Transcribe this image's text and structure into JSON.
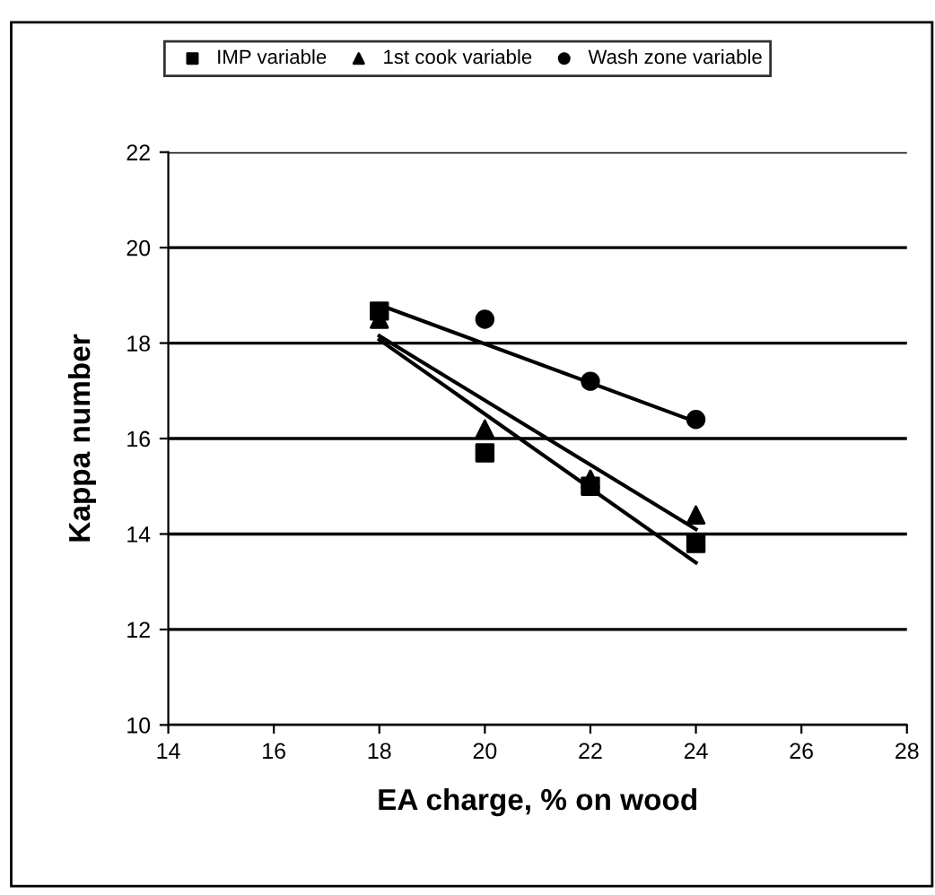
{
  "chart_data": {
    "type": "scatter",
    "xlabel": "EA charge, % on wood",
    "ylabel": "Kappa number",
    "xlim": [
      14,
      28
    ],
    "xticks": [
      14,
      16,
      18,
      20,
      22,
      24,
      26,
      28
    ],
    "ylim": [
      10,
      22
    ],
    "yticks": [
      10,
      12,
      14,
      16,
      18,
      20,
      22
    ],
    "grid": "y",
    "legend": "top",
    "series": [
      {
        "name": "IMP variable",
        "color": "#000000",
        "marker": "square",
        "x": [
          18,
          20,
          22,
          24
        ],
        "values": [
          18.67,
          15.7,
          15.0,
          13.8
        ]
      },
      {
        "name": "1st cook variable",
        "color": "#000000",
        "marker": "triangle",
        "x": [
          18,
          20,
          22,
          24
        ],
        "values": [
          18.5,
          16.2,
          15.15,
          14.4
        ]
      },
      {
        "name": "Wash zone variable",
        "color": "#000000",
        "marker": "circle",
        "x": [
          20,
          22,
          24
        ],
        "values": [
          18.5,
          17.2,
          16.4
        ]
      },
      {
        "type": "line",
        "color": "#000000",
        "marker": "none",
        "x": [
          18,
          24
        ],
        "values": [
          18.07,
          13.4
        ]
      },
      {
        "type": "line",
        "color": "#000000",
        "marker": "none",
        "x": [
          18,
          24
        ],
        "values": [
          18.15,
          14.1
        ]
      },
      {
        "type": "line",
        "color": "#000000",
        "marker": "none",
        "x": [
          18,
          24
        ],
        "values": [
          18.8,
          16.35
        ]
      }
    ]
  }
}
